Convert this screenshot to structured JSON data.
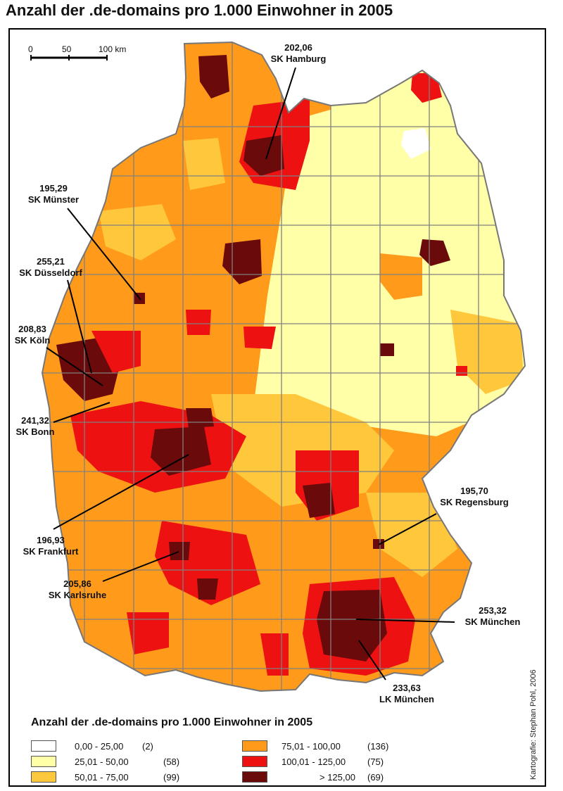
{
  "title": "Anzahl der .de-domains pro 1.000 Einwohner in 2005",
  "scale_bar": {
    "labels": [
      "0",
      "50",
      "100 km"
    ]
  },
  "colors": {
    "c1": "#ffffff",
    "c2": "#ffffa8",
    "c3": "#ffc83c",
    "c4": "#ff9a1a",
    "c5": "#ee1111",
    "c6": "#6a0a0a",
    "border": "#808080"
  },
  "callouts": [
    {
      "value": "202,06",
      "name": "SK Hamburg"
    },
    {
      "value": "195,29",
      "name": "SK Münster"
    },
    {
      "value": "255,21",
      "name": "SK Düsseldorf"
    },
    {
      "value": "208,83",
      "name": "SK Köln"
    },
    {
      "value": "241,32",
      "name": "SK Bonn"
    },
    {
      "value": "196,93",
      "name": "SK Frankfurt"
    },
    {
      "value": "205,86",
      "name": "SK Karlsruhe"
    },
    {
      "value": "195,70",
      "name": "SK Regensburg"
    },
    {
      "value": "253,32",
      "name": "SK München"
    },
    {
      "value": "233,63",
      "name": "LK München"
    }
  ],
  "legend": {
    "title": "Anzahl der .de-domains pro 1.000 Einwohner in 2005",
    "items": [
      {
        "range": "0,00  -  25,00",
        "count": "(2)",
        "color": "#ffffff"
      },
      {
        "range": "25,01  -  50,00",
        "count": "(58)",
        "color": "#ffffa8"
      },
      {
        "range": "50,01  -  75,00",
        "count": "(99)",
        "color": "#ffc83c"
      },
      {
        "range": "75,01  -  100,00",
        "count": "(136)",
        "color": "#ff9a1a"
      },
      {
        "range": "100,01  -  125,00",
        "count": "(75)",
        "color": "#ee1111"
      },
      {
        "range": "> 125,00",
        "count": "(69)",
        "color": "#6a0a0a"
      }
    ]
  },
  "credit": "Kartografie: Stephan Pohl, 2006"
}
